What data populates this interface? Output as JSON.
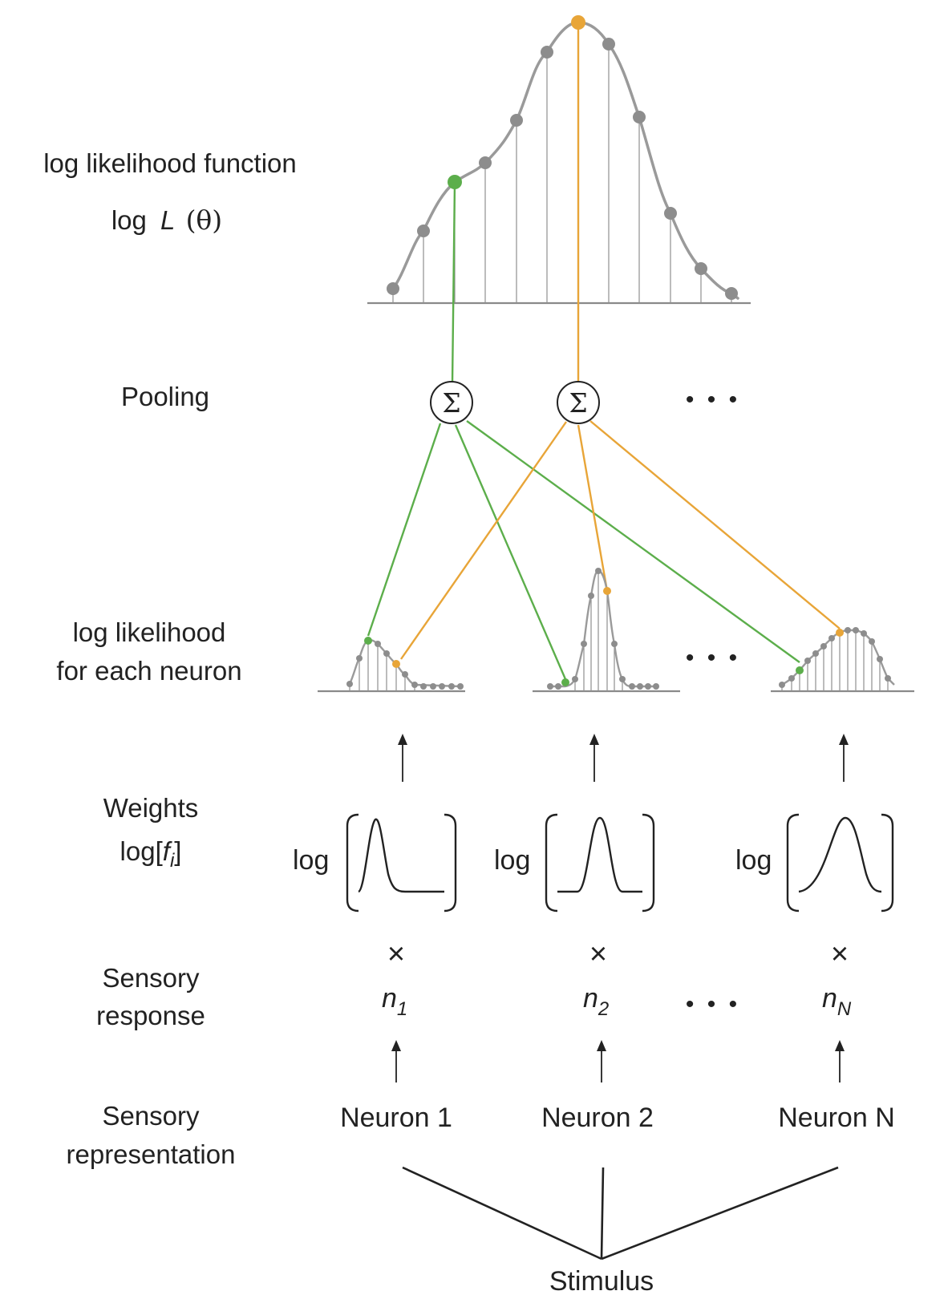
{
  "labels": {
    "loglik_function": "log likelihood function",
    "loglik_symbol_prefix": "log",
    "loglik_symbol_L": "L",
    "loglik_symbol_theta": "(θ)",
    "pooling": "Pooling",
    "loglik_each_line1": "log likelihood",
    "loglik_each_line2": "for each neuron",
    "weights_line1": "Weights",
    "weights_line2_prefix": "log[",
    "weights_line2_f": "f",
    "weights_line2_sub": "i",
    "weights_line2_suffix": "]",
    "sensory_response_line1": "Sensory",
    "sensory_response_line2": "response",
    "sensory_rep_line1": "Sensory",
    "sensory_rep_line2": "representation",
    "stimulus": "Stimulus"
  },
  "pool_nodes": [
    {
      "symbol": "Σ",
      "color": "green"
    },
    {
      "symbol": "Σ",
      "color": "orange"
    }
  ],
  "ellipsis": "• • •",
  "neurons": [
    {
      "name": "Neuron 1",
      "log_label": "log",
      "times": "×",
      "n_main": "n",
      "n_sub": "1"
    },
    {
      "name": "Neuron 2",
      "log_label": "log",
      "times": "×",
      "n_main": "n",
      "n_sub": "2"
    },
    {
      "name": "Neuron N",
      "log_label": "log",
      "times": "×",
      "n_main": "n",
      "n_sub": "N"
    }
  ],
  "colors": {
    "green": "#5cae4b",
    "orange": "#e8a538",
    "gray": "#8d8d8d",
    "ink": "#222222"
  },
  "icons": {
    "pooling": "summation-sigma-icon",
    "arrow": "up-arrow-icon"
  }
}
